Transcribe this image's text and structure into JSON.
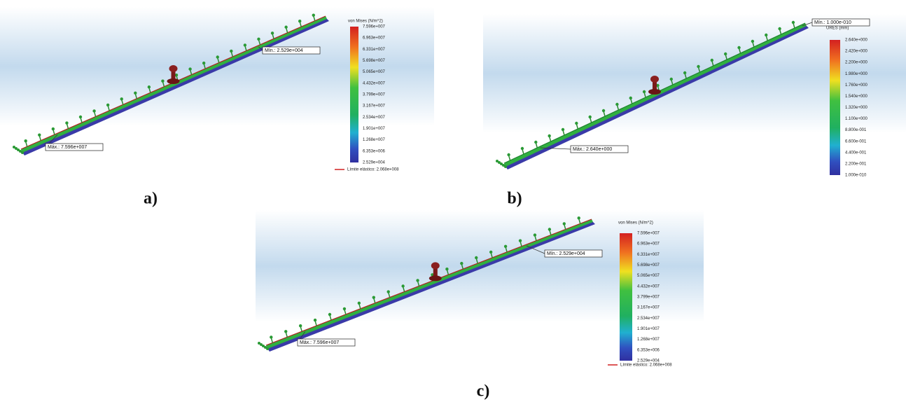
{
  "panels": [
    {
      "label": "a)",
      "legend": {
        "title": "von Mises (N/m^2)",
        "ticks": [
          "7.596e+007",
          "6.963e+007",
          "6.331e+007",
          "5.698e+007",
          "5.065e+007",
          "4.432e+007",
          "3.799e+007",
          "3.167e+007",
          "2.534e+007",
          "1.901e+007",
          "1.268e+007",
          "6.353e+006",
          "2.529e+004"
        ],
        "note": "Límite elástico: 2.068e+008"
      },
      "annotations": {
        "min": "Mín.: 2.529e+004",
        "max": "Máx.: 7.596e+007"
      }
    },
    {
      "label": "b)",
      "legend": {
        "title": "URES (mm)",
        "ticks": [
          "2.640e+000",
          "2.420e+000",
          "2.200e+000",
          "1.980e+000",
          "1.760e+000",
          "1.540e+000",
          "1.320e+000",
          "1.100e+000",
          "8.800e-001",
          "6.600e-001",
          "4.400e-001",
          "2.200e-001",
          "1.000e-010"
        ]
      },
      "annotations": {
        "min": "Mín.: 1.000e-010",
        "max": "Máx.: 2.640e+000"
      }
    },
    {
      "label": "c)",
      "legend": {
        "title": "von Mises (N/m^2)",
        "ticks": [
          "7.596e+007",
          "6.963e+007",
          "6.331e+007",
          "5.698e+007",
          "5.065e+007",
          "4.432e+007",
          "3.799e+007",
          "3.167e+007",
          "2.534e+007",
          "1.901e+007",
          "1.268e+007",
          "6.353e+006",
          "2.529e+004"
        ],
        "note": "Límite elástico: 2.068e+008"
      },
      "annotations": {
        "min": "Mín.: 2.529e+004",
        "max": "Máx.: 7.596e+007"
      }
    }
  ]
}
